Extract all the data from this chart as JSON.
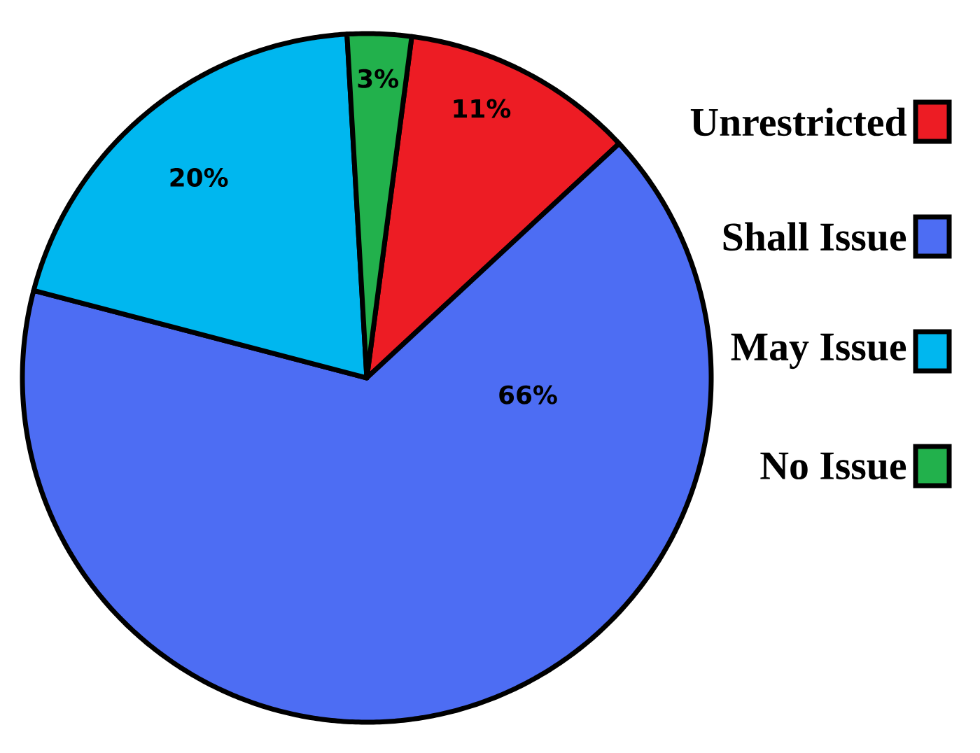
{
  "chart_data": {
    "type": "pie",
    "categories": [
      "Unrestricted",
      "Shall Issue",
      "May Issue",
      "No Issue"
    ],
    "values": [
      11,
      66,
      20,
      3
    ],
    "colors": [
      "#ed1c24",
      "#4d6df3",
      "#00b7ef",
      "#22b14c"
    ],
    "value_labels": [
      "11%",
      "66%",
      "20%",
      "3%"
    ],
    "legend": "right"
  }
}
